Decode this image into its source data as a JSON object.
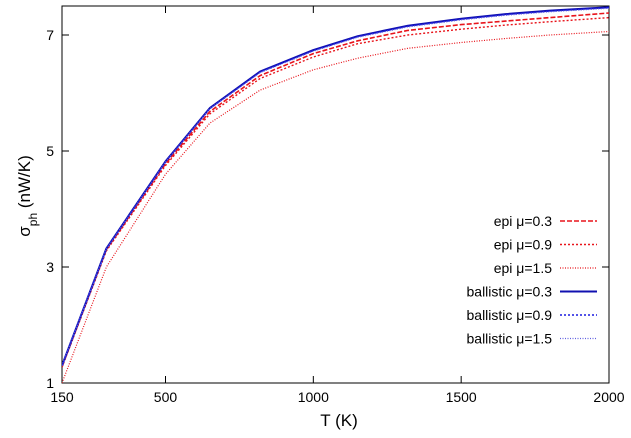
{
  "chart_data": {
    "type": "line",
    "xlabel": "T (K)",
    "ylabel_main": "σ",
    "ylabel_sub": "ph",
    "ylabel_rest": " (nW/K)",
    "xlim": [
      150,
      2000
    ],
    "ylim": [
      1,
      7.5
    ],
    "xticks": [
      150,
      500,
      1000,
      1500,
      2000
    ],
    "yticks": [
      1,
      3,
      5,
      7
    ],
    "legend_position": "bottom-right",
    "grid": false,
    "x": [
      150,
      300,
      500,
      650,
      820,
      1000,
      1150,
      1320,
      1500,
      1650,
      1800,
      2000
    ],
    "series": [
      {
        "name": "epi μ=0.3",
        "color": "#e8141b",
        "dash": "5,2",
        "width": 1.6,
        "values": [
          1.28,
          3.3,
          4.78,
          5.68,
          6.3,
          6.68,
          6.9,
          7.08,
          7.18,
          7.24,
          7.3,
          7.38
        ]
      },
      {
        "name": "epi μ=0.9",
        "color": "#e8141b",
        "dash": "2,2",
        "width": 1.4,
        "values": [
          1.27,
          3.28,
          4.75,
          5.64,
          6.25,
          6.62,
          6.85,
          7.0,
          7.1,
          7.17,
          7.23,
          7.3
        ]
      },
      {
        "name": "epi μ=1.5",
        "color": "#e8141b",
        "dash": "1,1.5",
        "width": 1.2,
        "values": [
          1.0,
          3.0,
          4.6,
          5.48,
          6.05,
          6.4,
          6.6,
          6.77,
          6.87,
          6.94,
          7.0,
          7.06
        ]
      },
      {
        "name": "ballistic μ=0.3",
        "color": "#1010b0",
        "dash": "",
        "width": 2.0,
        "values": [
          1.3,
          3.32,
          4.82,
          5.74,
          6.37,
          6.74,
          6.98,
          7.16,
          7.28,
          7.36,
          7.42,
          7.48
        ]
      },
      {
        "name": "ballistic μ=0.9",
        "color": "#1a1ae0",
        "dash": "2,2",
        "width": 1.4,
        "values": [
          1.3,
          3.31,
          4.81,
          5.73,
          6.36,
          6.73,
          6.97,
          7.15,
          7.27,
          7.35,
          7.41,
          7.47
        ]
      },
      {
        "name": "ballistic μ=1.5",
        "color": "#6060e0",
        "dash": "1,1.5",
        "width": 1.2,
        "values": [
          1.3,
          3.31,
          4.81,
          5.73,
          6.35,
          6.72,
          6.96,
          7.14,
          7.26,
          7.34,
          7.4,
          7.46
        ]
      }
    ]
  }
}
